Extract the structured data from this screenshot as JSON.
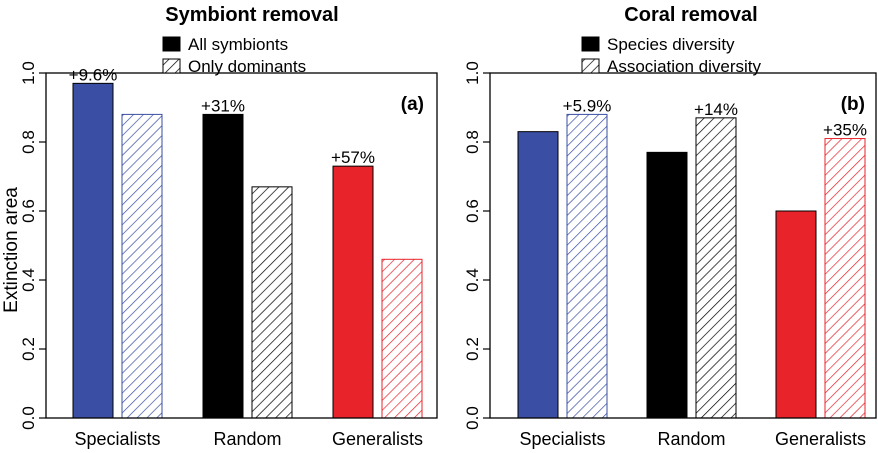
{
  "chart_data": [
    {
      "type": "bar",
      "title": "Symbiont removal",
      "panel_label": "(a)",
      "ylabel": "Extinction area",
      "xlabel": "",
      "ylim": [
        0,
        1.0
      ],
      "yticks": [
        "0.0",
        "0.2",
        "0.4",
        "0.6",
        "0.8",
        "1.0"
      ],
      "categories": [
        "Specialists",
        "Random",
        "Generalists"
      ],
      "category_colors": [
        "#3a4fa3",
        "#000000",
        "#e8232a"
      ],
      "series": [
        {
          "name": "All symbionts",
          "style": "solid",
          "values": [
            0.97,
            0.88,
            0.73
          ]
        },
        {
          "name": "Only dominants",
          "style": "hatched",
          "values": [
            0.88,
            0.67,
            0.46
          ]
        }
      ],
      "annotations": [
        {
          "category": "Specialists",
          "series": "All symbionts",
          "text": "+9.6%"
        },
        {
          "category": "Random",
          "series": "All symbionts",
          "text": "+31%"
        },
        {
          "category": "Generalists",
          "series": "All symbionts",
          "text": "+57%"
        }
      ],
      "legend_position": "top"
    },
    {
      "type": "bar",
      "title": "Coral removal",
      "panel_label": "(b)",
      "ylabel": "",
      "xlabel": "",
      "ylim": [
        0,
        1.0
      ],
      "yticks": [
        "0.0",
        "0.2",
        "0.4",
        "0.6",
        "0.8",
        "1.0"
      ],
      "categories": [
        "Specialists",
        "Random",
        "Generalists"
      ],
      "category_colors": [
        "#3a4fa3",
        "#000000",
        "#e8232a"
      ],
      "series": [
        {
          "name": "Species diversity",
          "style": "solid",
          "values": [
            0.83,
            0.77,
            0.6
          ]
        },
        {
          "name": "Association diversity",
          "style": "hatched",
          "values": [
            0.88,
            0.87,
            0.81
          ]
        }
      ],
      "annotations": [
        {
          "category": "Specialists",
          "series": "Association diversity",
          "text": "+5.9%"
        },
        {
          "category": "Random",
          "series": "Association diversity",
          "text": "+14%"
        },
        {
          "category": "Generalists",
          "series": "Association diversity",
          "text": "+35%"
        }
      ],
      "legend_position": "top"
    }
  ]
}
